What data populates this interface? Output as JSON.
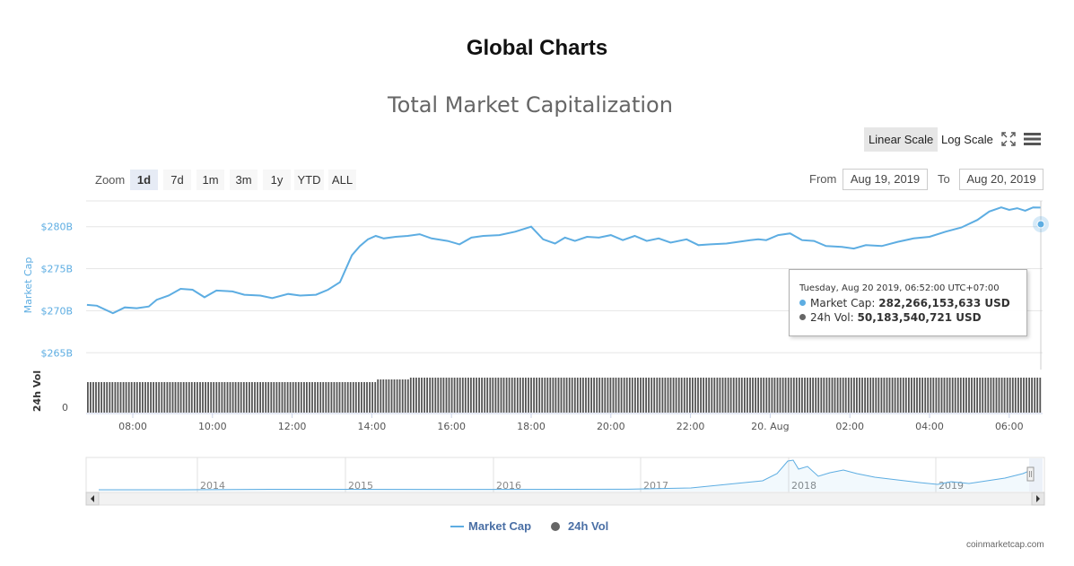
{
  "page": {
    "title": "Global Charts"
  },
  "chart_data": {
    "type": "line",
    "title": "Total Market Capitalization",
    "ylabel": "Market Cap",
    "ylabel2": "24h Vol",
    "y_ticks": [
      "$265B",
      "$270B",
      "$275B",
      "$280B"
    ],
    "vol_tick": "0",
    "x_ticks": [
      "08:00",
      "10:00",
      "12:00",
      "14:00",
      "16:00",
      "18:00",
      "20:00",
      "22:00",
      "20. Aug",
      "02:00",
      "04:00",
      "06:00"
    ],
    "ylim": [
      263,
      287
    ],
    "x_hours": [
      6.85,
      7.1,
      7.5,
      7.8,
      8.1,
      8.4,
      8.6,
      8.9,
      9.2,
      9.5,
      9.8,
      10.1,
      10.5,
      10.8,
      11.2,
      11.5,
      11.9,
      12.2,
      12.6,
      12.9,
      13.2,
      13.5,
      13.7,
      13.9,
      14.1,
      14.3,
      14.6,
      14.9,
      15.2,
      15.5,
      15.9,
      16.2,
      16.5,
      16.8,
      17.2,
      17.6,
      18,
      18.3,
      18.6,
      18.85,
      19.1,
      19.4,
      19.7,
      20,
      20.3,
      20.6,
      20.9,
      21.2,
      21.5,
      21.9,
      22.2,
      22.5,
      22.9,
      23.2,
      23.5,
      23.7,
      23.9,
      24.2,
      24.5,
      24.8,
      25.1,
      25.4,
      25.8,
      26.1,
      26.4,
      26.8,
      27.2,
      27.6,
      28,
      28.4,
      28.8,
      29.2,
      29.5,
      29.8,
      30,
      30.2,
      30.4,
      30.6,
      30.75,
      30.87
    ],
    "market_cap": [
      270.7,
      270.6,
      269.7,
      270.4,
      270.3,
      270.5,
      271.3,
      271.8,
      272.6,
      272.5,
      271.6,
      272.4,
      272.3,
      271.9,
      271.8,
      271.5,
      272.0,
      271.8,
      271.9,
      272.5,
      273.4,
      276.6,
      277.7,
      278.5,
      278.9,
      278.6,
      278.8,
      278.9,
      279.1,
      278.6,
      278.3,
      277.9,
      278.7,
      278.9,
      279.0,
      279.4,
      280.0,
      278.5,
      278.0,
      278.7,
      278.3,
      278.8,
      278.7,
      279.0,
      278.4,
      278.9,
      278.3,
      278.6,
      278.1,
      278.5,
      277.8,
      277.9,
      278.0,
      278.2,
      278.4,
      278.5,
      278.4,
      279.0,
      279.2,
      278.4,
      278.3,
      277.7,
      277.6,
      277.4,
      277.8,
      277.7,
      278.2,
      278.6,
      278.8,
      279.4,
      279.9,
      280.8,
      281.8,
      282.3,
      282.0,
      282.2,
      281.9,
      282.3,
      282.27,
      282.27
    ],
    "volume_note": "approximately flat ~50B per interval",
    "navigator_years": [
      "2014",
      "2015",
      "2016",
      "2017",
      "2018",
      "2019"
    ],
    "series": [
      {
        "name": "Market Cap",
        "color": "#5dade2"
      },
      {
        "name": "24h Vol",
        "color": "#666666"
      }
    ]
  },
  "controls": {
    "scales": [
      "Linear Scale",
      "Log Scale"
    ],
    "zoom_label": "Zoom",
    "zoom": [
      "1d",
      "7d",
      "1m",
      "3m",
      "1y",
      "YTD",
      "ALL"
    ],
    "from_label": "From",
    "from_value": "Aug 19, 2019",
    "to_label": "To",
    "to_value": "Aug 20, 2019",
    "fullscreen_icon": "fullscreen-icon",
    "menu_icon": "hamburger-menu-icon"
  },
  "tooltip": {
    "header": "Tuesday, Aug 20 2019, 06:52:00 UTC+07:00",
    "mc_label": "Market Cap:",
    "mc_value": "282,266,153,633 USD",
    "vol_label": "24h Vol:",
    "vol_value": "50,183,540,721 USD"
  },
  "legend": [
    "Market Cap",
    "24h Vol"
  ],
  "credit": "coinmarketcap.com"
}
